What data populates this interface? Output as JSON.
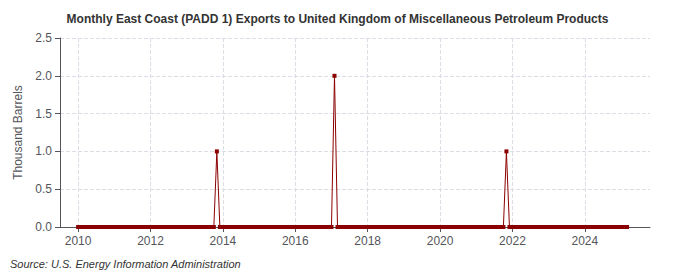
{
  "chart_data": {
    "type": "line",
    "title": "Monthly East Coast (PADD 1) Exports to United Kingdom of Miscellaneous Petroleum Products",
    "ylabel": "Thousand Barrels",
    "annotations": [
      "Source: U.S. Energy Information Administration"
    ],
    "color": "#8b0000",
    "marker": "square",
    "grid": true,
    "xlim": [
      2009.5,
      2025.8
    ],
    "ylim": [
      0,
      2.5
    ],
    "xticks": [
      2010,
      2012,
      2014,
      2016,
      2018,
      2020,
      2022,
      2024
    ],
    "yticks": [
      {
        "value": 0.0,
        "label": "0.0"
      },
      0.5,
      {
        "value": 1.0,
        "label": "1.0"
      },
      1.5,
      {
        "value": 2.0,
        "label": "2.0"
      },
      2.5
    ],
    "x": [
      2010,
      2010.0833333333333,
      2010.1666666666667,
      2010.25,
      2010.3333333333333,
      2010.4166666666667,
      2010.5,
      2010.5833333333333,
      2010.6666666666667,
      2010.75,
      2010.8333333333333,
      2010.9166666666667,
      2011,
      2011.0833333333333,
      2011.1666666666667,
      2011.25,
      2011.3333333333333,
      2011.4166666666667,
      2011.5,
      2011.5833333333333,
      2011.6666666666667,
      2011.75,
      2011.8333333333333,
      2011.9166666666667,
      2012,
      2012.0833333333333,
      2012.1666666666667,
      2012.25,
      2012.3333333333333,
      2012.4166666666667,
      2012.5,
      2012.5833333333333,
      2012.6666666666667,
      2012.75,
      2012.8333333333333,
      2012.9166666666667,
      2013,
      2013.0833333333333,
      2013.1666666666667,
      2013.25,
      2013.3333333333333,
      2013.4166666666667,
      2013.5,
      2013.5833333333333,
      2013.6666666666667,
      2013.75,
      2013.8333333333333,
      2013.9166666666667,
      2014,
      2014.0833333333333,
      2014.1666666666667,
      2014.25,
      2014.3333333333333,
      2014.4166666666667,
      2014.5,
      2014.5833333333333,
      2014.6666666666667,
      2014.75,
      2014.8333333333333,
      2014.9166666666667,
      2015,
      2015.0833333333333,
      2015.1666666666667,
      2015.25,
      2015.3333333333333,
      2015.4166666666667,
      2015.5,
      2015.5833333333333,
      2015.6666666666667,
      2015.75,
      2015.8333333333333,
      2015.9166666666667,
      2016,
      2016.0833333333333,
      2016.1666666666667,
      2016.25,
      2016.3333333333333,
      2016.4166666666667,
      2016.5,
      2016.5833333333333,
      2016.6666666666667,
      2016.75,
      2016.8333333333333,
      2016.9166666666667,
      2017,
      2017.0833333333333,
      2017.1666666666667,
      2017.25,
      2017.3333333333333,
      2017.4166666666667,
      2017.5,
      2017.5833333333333,
      2017.6666666666667,
      2017.75,
      2017.8333333333333,
      2017.9166666666667,
      2018,
      2018.0833333333333,
      2018.1666666666667,
      2018.25,
      2018.3333333333333,
      2018.4166666666667,
      2018.5,
      2018.5833333333333,
      2018.6666666666667,
      2018.75,
      2018.8333333333333,
      2018.9166666666667,
      2019,
      2019.0833333333333,
      2019.1666666666667,
      2019.25,
      2019.3333333333333,
      2019.4166666666667,
      2019.5,
      2019.5833333333333,
      2019.6666666666667,
      2019.75,
      2019.8333333333333,
      2019.9166666666667,
      2020,
      2020.0833333333333,
      2020.1666666666667,
      2020.25,
      2020.3333333333333,
      2020.4166666666667,
      2020.5,
      2020.5833333333333,
      2020.6666666666667,
      2020.75,
      2020.8333333333333,
      2020.9166666666667,
      2021,
      2021.0833333333333,
      2021.1666666666667,
      2021.25,
      2021.3333333333333,
      2021.4166666666667,
      2021.5,
      2021.5833333333333,
      2021.6666666666667,
      2021.75,
      2021.8333333333333,
      2021.9166666666667,
      2022,
      2022.0833333333333,
      2022.1666666666667,
      2022.25,
      2022.3333333333333,
      2022.4166666666667,
      2022.5,
      2022.5833333333333,
      2022.6666666666667,
      2022.75,
      2022.8333333333333,
      2022.9166666666667,
      2023,
      2023.0833333333333,
      2023.1666666666667,
      2023.25,
      2023.3333333333333,
      2023.4166666666667,
      2023.5,
      2023.5833333333333,
      2023.6666666666667,
      2023.75,
      2023.8333333333333,
      2023.9166666666667,
      2024,
      2024.0833333333333,
      2024.1666666666667,
      2024.25,
      2024.3333333333333,
      2024.4166666666667,
      2024.5,
      2024.5833333333333,
      2024.6666666666667,
      2024.75,
      2024.8333333333333,
      2024.9166666666667,
      2025,
      2025.0833333333333,
      2025.1666666666667
    ],
    "values": [
      0,
      0,
      0,
      0,
      0,
      0,
      0,
      0,
      0,
      0,
      0,
      0,
      0,
      0,
      0,
      0,
      0,
      0,
      0,
      0,
      0,
      0,
      0,
      0,
      0,
      0,
      0,
      0,
      0,
      0,
      0,
      0,
      0,
      0,
      0,
      0,
      0,
      0,
      0,
      0,
      0,
      0,
      0,
      0,
      0,
      0,
      1,
      0,
      0,
      0,
      0,
      0,
      0,
      0,
      0,
      0,
      0,
      0,
      0,
      0,
      0,
      0,
      0,
      0,
      0,
      0,
      0,
      0,
      0,
      0,
      0,
      0,
      0,
      0,
      0,
      0,
      0,
      0,
      0,
      0,
      0,
      0,
      0,
      0,
      0,
      2,
      0,
      0,
      0,
      0,
      0,
      0,
      0,
      0,
      0,
      0,
      0,
      0,
      0,
      0,
      0,
      0,
      0,
      0,
      0,
      0,
      0,
      0,
      0,
      0,
      0,
      0,
      0,
      0,
      0,
      0,
      0,
      0,
      0,
      0,
      0,
      0,
      0,
      0,
      0,
      0,
      0,
      0,
      0,
      0,
      0,
      0,
      0,
      0,
      0,
      0,
      0,
      0,
      0,
      0,
      0,
      0,
      1,
      0,
      0,
      0,
      0,
      0,
      0,
      0,
      0,
      0,
      0,
      0,
      0,
      0,
      0,
      0,
      0,
      0,
      0,
      0,
      0,
      0,
      0,
      0,
      0,
      0,
      0,
      0,
      0,
      0,
      0,
      0,
      0,
      0,
      0,
      0,
      0,
      0,
      0,
      0,
      0
    ]
  }
}
